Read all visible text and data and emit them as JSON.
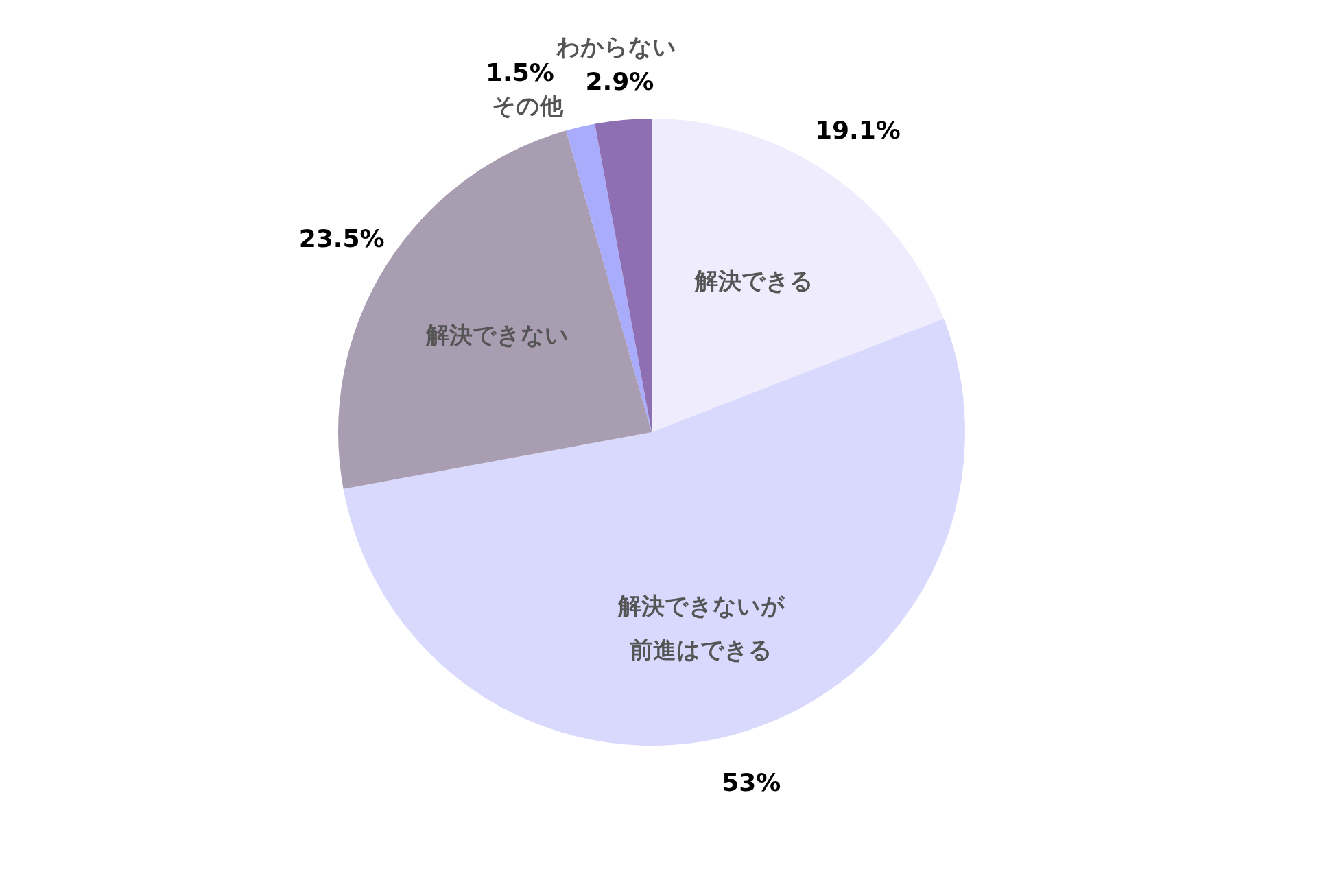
{
  "chart_data": {
    "type": "pie",
    "categories": [
      "解決できる",
      "解決できないが前進はできる",
      "解決できない",
      "その他",
      "わからない"
    ],
    "values": [
      19.1,
      53,
      23.5,
      1.5,
      2.9
    ],
    "value_labels": [
      "19.1%",
      "53%",
      "23.5%",
      "1.5%",
      "2.9%"
    ],
    "colors": [
      "#eeecfd",
      "#d9d9fd",
      "#a99db2",
      "#a9abfb",
      "#8f6fb3"
    ]
  }
}
